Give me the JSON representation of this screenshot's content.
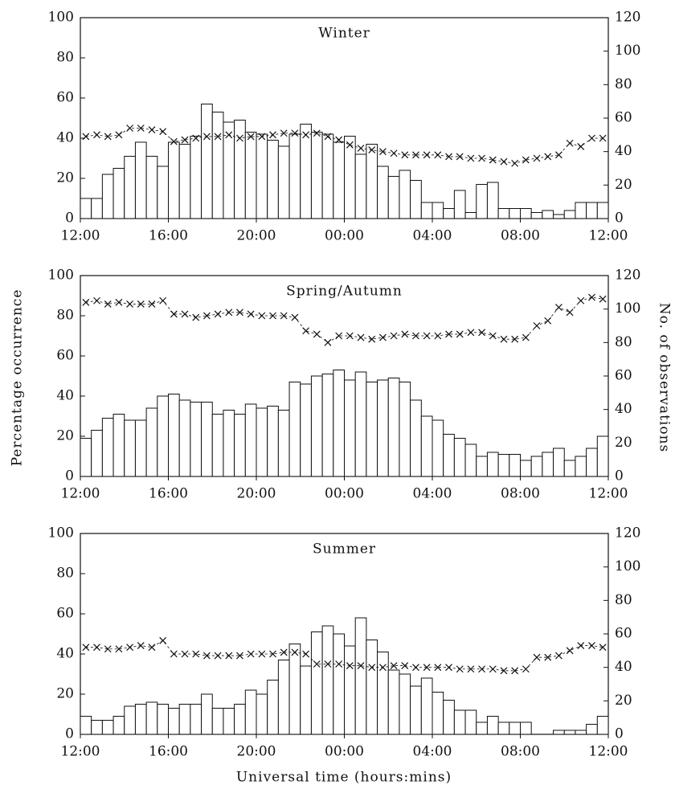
{
  "xlabel": "Universal time (hours:mins)",
  "ylabel": "Percentage occurrence",
  "y2label": "No. of observations",
  "chart_data": [
    {
      "type": "bar",
      "title": "Winter",
      "x": [
        0.25,
        0.75,
        1.25,
        1.75,
        2.25,
        2.75,
        3.25,
        3.75,
        4.25,
        4.75,
        5.25,
        5.75,
        6.25,
        6.75,
        7.25,
        7.75,
        8.25,
        8.75,
        9.25,
        9.75,
        10.25,
        10.75,
        11.25,
        11.75,
        12.25,
        12.75,
        13.25,
        13.75,
        14.25,
        14.75,
        15.25,
        15.75,
        16.25,
        16.75,
        17.25,
        17.75,
        18.25,
        18.75,
        19.25,
        19.75,
        20.25,
        20.75,
        21.25,
        21.75,
        22.25,
        22.75,
        23.25,
        23.75
      ],
      "series": [
        {
          "color": "#ffffff",
          "values": [
            10,
            10,
            22,
            25,
            31,
            38,
            31,
            26,
            38,
            37,
            41,
            57,
            53,
            48,
            49,
            43,
            42,
            39,
            36,
            42,
            47,
            43,
            42,
            38,
            41,
            32,
            37,
            26,
            21,
            24,
            19,
            8,
            8,
            5,
            14,
            3,
            17,
            18,
            5,
            5,
            5,
            3,
            4,
            2,
            4,
            8,
            8,
            8
          ]
        },
        {
          "color": "#111111",
          "axis": "y2",
          "values": [
            49,
            50,
            49,
            50,
            54,
            54,
            53,
            52,
            46,
            47,
            48,
            49,
            49,
            50,
            48,
            49,
            49,
            50,
            51,
            51,
            50,
            51,
            49,
            47,
            44,
            42,
            41,
            40,
            39,
            38,
            38,
            38,
            38,
            37,
            37,
            36,
            36,
            35,
            34,
            33,
            35,
            36,
            37,
            38,
            45,
            43,
            48,
            48
          ]
        }
      ],
      "xlim": [
        0,
        24
      ],
      "xticks": [
        {
          "value": 0,
          "label": "12:00"
        },
        {
          "value": 4,
          "label": "16:00"
        },
        {
          "value": 8,
          "label": "20:00"
        },
        {
          "value": 12,
          "label": "00:00"
        },
        {
          "value": 16,
          "label": "04:00"
        },
        {
          "value": 20,
          "label": "08:00"
        },
        {
          "value": 24,
          "label": "12:00"
        }
      ],
      "ylim": [
        0,
        100
      ],
      "yticks": [
        0,
        20,
        40,
        60,
        80,
        100
      ],
      "y2lim": [
        0,
        120
      ],
      "y2ticks": [
        0,
        20,
        40,
        60,
        80,
        100,
        120
      ]
    },
    {
      "type": "bar",
      "title": "Spring/Autumn",
      "x": [
        0.25,
        0.75,
        1.25,
        1.75,
        2.25,
        2.75,
        3.25,
        3.75,
        4.25,
        4.75,
        5.25,
        5.75,
        6.25,
        6.75,
        7.25,
        7.75,
        8.25,
        8.75,
        9.25,
        9.75,
        10.25,
        10.75,
        11.25,
        11.75,
        12.25,
        12.75,
        13.25,
        13.75,
        14.25,
        14.75,
        15.25,
        15.75,
        16.25,
        16.75,
        17.25,
        17.75,
        18.25,
        18.75,
        19.25,
        19.75,
        20.25,
        20.75,
        21.25,
        21.75,
        22.25,
        22.75,
        23.25,
        23.75
      ],
      "series": [
        {
          "color": "#ffffff",
          "values": [
            19,
            23,
            29,
            31,
            28,
            28,
            34,
            40,
            41,
            38,
            37,
            37,
            31,
            33,
            31,
            36,
            34,
            35,
            33,
            47,
            46,
            50,
            51,
            53,
            48,
            52,
            47,
            48,
            49,
            47,
            38,
            30,
            28,
            21,
            19,
            16,
            10,
            12,
            11,
            11,
            8,
            10,
            12,
            14,
            8,
            10,
            14,
            20
          ]
        },
        {
          "color": "#111111",
          "axis": "y2",
          "values": [
            104,
            105,
            103,
            104,
            103,
            103,
            103,
            105,
            97,
            97,
            95,
            96,
            97,
            98,
            98,
            97,
            96,
            96,
            96,
            95,
            87,
            85,
            80,
            84,
            84,
            83,
            82,
            83,
            84,
            85,
            84,
            84,
            84,
            85,
            85,
            86,
            86,
            84,
            82,
            82,
            83,
            90,
            93,
            101,
            98,
            105,
            107,
            106
          ]
        }
      ],
      "xlim": [
        0,
        24
      ],
      "xticks": [
        {
          "value": 0,
          "label": "12:00"
        },
        {
          "value": 4,
          "label": "16:00"
        },
        {
          "value": 8,
          "label": "20:00"
        },
        {
          "value": 12,
          "label": "00:00"
        },
        {
          "value": 16,
          "label": "04:00"
        },
        {
          "value": 20,
          "label": "08:00"
        },
        {
          "value": 24,
          "label": "12:00"
        }
      ],
      "ylim": [
        0,
        100
      ],
      "yticks": [
        0,
        20,
        40,
        60,
        80,
        100
      ],
      "y2lim": [
        0,
        120
      ],
      "y2ticks": [
        0,
        20,
        40,
        60,
        80,
        100,
        120
      ]
    },
    {
      "type": "bar",
      "title": "Summer",
      "x": [
        0.25,
        0.75,
        1.25,
        1.75,
        2.25,
        2.75,
        3.25,
        3.75,
        4.25,
        4.75,
        5.25,
        5.75,
        6.25,
        6.75,
        7.25,
        7.75,
        8.25,
        8.75,
        9.25,
        9.75,
        10.25,
        10.75,
        11.25,
        11.75,
        12.25,
        12.75,
        13.25,
        13.75,
        14.25,
        14.75,
        15.25,
        15.75,
        16.25,
        16.75,
        17.25,
        17.75,
        18.25,
        18.75,
        19.25,
        19.75,
        20.25,
        20.75,
        21.25,
        21.75,
        22.25,
        22.75,
        23.25,
        23.75
      ],
      "series": [
        {
          "color": "#ffffff",
          "values": [
            9,
            7,
            7,
            9,
            14,
            15,
            16,
            15,
            13,
            15,
            15,
            20,
            13,
            13,
            15,
            22,
            20,
            27,
            37,
            45,
            34,
            51,
            54,
            50,
            44,
            58,
            47,
            41,
            32,
            30,
            24,
            28,
            21,
            17,
            12,
            12,
            6,
            9,
            6,
            6,
            6,
            0,
            0,
            2,
            2,
            2,
            5,
            9
          ]
        },
        {
          "color": "#111111",
          "axis": "y2",
          "values": [
            52,
            52,
            51,
            51,
            52,
            53,
            52,
            56,
            48,
            48,
            48,
            47,
            47,
            47,
            47,
            48,
            48,
            48,
            49,
            49,
            48,
            42,
            42,
            42,
            41,
            41,
            40,
            40,
            41,
            41,
            40,
            40,
            40,
            40,
            39,
            39,
            39,
            39,
            38,
            38,
            39,
            46,
            46,
            47,
            50,
            53,
            53,
            52
          ]
        }
      ],
      "xlim": [
        0,
        24
      ],
      "xticks": [
        {
          "value": 0,
          "label": "12:00"
        },
        {
          "value": 4,
          "label": "16:00"
        },
        {
          "value": 8,
          "label": "20:00"
        },
        {
          "value": 12,
          "label": "00:00"
        },
        {
          "value": 16,
          "label": "04:00"
        },
        {
          "value": 20,
          "label": "08:00"
        },
        {
          "value": 24,
          "label": "12:00"
        }
      ],
      "ylim": [
        0,
        100
      ],
      "yticks": [
        0,
        20,
        40,
        60,
        80,
        100
      ],
      "y2lim": [
        0,
        120
      ],
      "y2ticks": [
        0,
        20,
        40,
        60,
        80,
        100,
        120
      ]
    }
  ]
}
